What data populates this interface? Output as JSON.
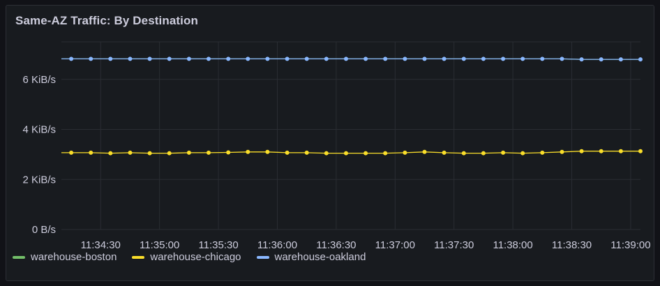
{
  "panel": {
    "title": "Same-AZ Traffic: By Destination"
  },
  "chart_data": {
    "type": "line",
    "title": "Same-AZ Traffic: By Destination",
    "xlabel": "",
    "ylabel": "",
    "x_range": [
      "11:34:10",
      "11:39:05"
    ],
    "ylim": [
      0,
      7.5
    ],
    "y_ticks": [
      {
        "value": 0,
        "label": "0 B/s"
      },
      {
        "value": 2,
        "label": "2 KiB/s"
      },
      {
        "value": 4,
        "label": "4 KiB/s"
      },
      {
        "value": 6,
        "label": "6 KiB/s"
      }
    ],
    "x_ticks": [
      "11:34:30",
      "11:35:00",
      "11:35:30",
      "11:36:00",
      "11:36:30",
      "11:37:00",
      "11:37:30",
      "11:38:00",
      "11:38:30",
      "11:39:00"
    ],
    "grid": true,
    "legend_position": "bottom-left",
    "x": [
      "11:34:15",
      "11:34:25",
      "11:34:35",
      "11:34:45",
      "11:34:55",
      "11:35:05",
      "11:35:15",
      "11:35:25",
      "11:35:35",
      "11:35:45",
      "11:35:55",
      "11:36:05",
      "11:36:15",
      "11:36:25",
      "11:36:35",
      "11:36:45",
      "11:36:55",
      "11:37:05",
      "11:37:15",
      "11:37:25",
      "11:37:35",
      "11:37:45",
      "11:37:55",
      "11:38:05",
      "11:38:15",
      "11:38:25",
      "11:38:35",
      "11:38:45",
      "11:38:55",
      "11:39:05"
    ],
    "series": [
      {
        "name": "warehouse-boston",
        "color": "#73bf69",
        "values": [
          6.82,
          6.82,
          6.82,
          6.82,
          6.82,
          6.82,
          6.82,
          6.82,
          6.82,
          6.82,
          6.82,
          6.82,
          6.82,
          6.82,
          6.82,
          6.82,
          6.82,
          6.82,
          6.82,
          6.82,
          6.82,
          6.82,
          6.82,
          6.82,
          6.82,
          6.82,
          6.8,
          6.8,
          6.8,
          6.8
        ],
        "show_points": false
      },
      {
        "name": "warehouse-chicago",
        "color": "#fade2a",
        "values": [
          3.07,
          3.07,
          3.05,
          3.07,
          3.05,
          3.05,
          3.07,
          3.07,
          3.08,
          3.1,
          3.1,
          3.07,
          3.07,
          3.05,
          3.05,
          3.05,
          3.05,
          3.07,
          3.1,
          3.07,
          3.05,
          3.05,
          3.07,
          3.05,
          3.07,
          3.1,
          3.13,
          3.13,
          3.13,
          3.13
        ],
        "show_points": true
      },
      {
        "name": "warehouse-oakland",
        "color": "#8ab8ff",
        "values": [
          6.82,
          6.82,
          6.82,
          6.82,
          6.82,
          6.82,
          6.82,
          6.82,
          6.82,
          6.82,
          6.82,
          6.82,
          6.82,
          6.82,
          6.82,
          6.82,
          6.82,
          6.82,
          6.82,
          6.82,
          6.82,
          6.82,
          6.82,
          6.82,
          6.82,
          6.82,
          6.8,
          6.8,
          6.8,
          6.8
        ],
        "show_points": true
      }
    ]
  }
}
